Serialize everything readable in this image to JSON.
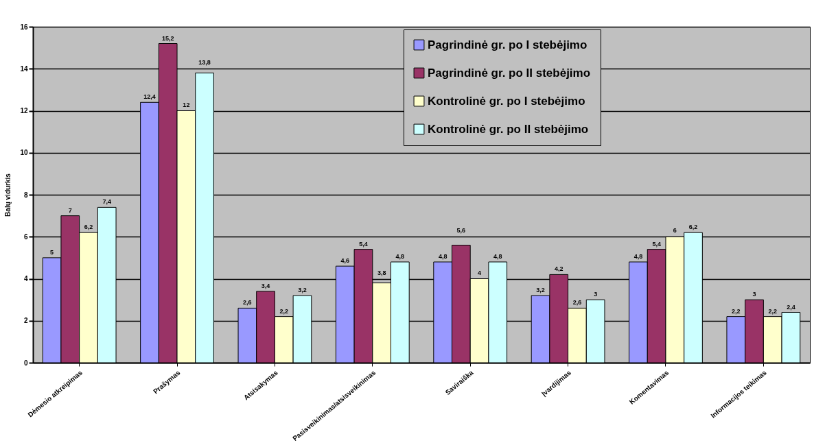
{
  "chart_data": {
    "type": "bar",
    "ylabel": "Balų vidurkis",
    "categories": [
      "Dėmesio atkreipimas",
      "Prašymas",
      "Atsisakymas",
      "Pasisveikinimas/atsisveikinimas",
      "Saviraiška",
      "Įvardijimas",
      "Komentavimas",
      "Informacijos teikimas"
    ],
    "series": [
      {
        "name": "Pagrindinė gr. po I stebėjimo",
        "color": "#9999ff",
        "values": [
          5,
          12.4,
          2.6,
          4.6,
          4.8,
          3.2,
          4.8,
          2.2
        ],
        "value_labels": [
          "5",
          "12,4",
          "2,6",
          "4,6",
          "4,8",
          "3,2",
          "4,8",
          "2,2"
        ]
      },
      {
        "name": "Pagrindinė gr. po II stebėjimo",
        "color": "#993366",
        "values": [
          7,
          15.2,
          3.4,
          5.4,
          5.6,
          4.2,
          5.4,
          3
        ],
        "value_labels": [
          "7",
          "15,2",
          "3,4",
          "5,4",
          "5,6",
          "4,2",
          "5,4",
          "3"
        ]
      },
      {
        "name": "Kontrolinė gr. po I stebėjimo",
        "color": "#ffffcc",
        "values": [
          6.2,
          12,
          2.2,
          3.8,
          4,
          2.6,
          6,
          2.2
        ],
        "value_labels": [
          "6,2",
          "12",
          "2,2",
          "3,8",
          "4",
          "2,6",
          "6",
          "2,2"
        ]
      },
      {
        "name": "Kontrolinė gr. po II stebėjimo",
        "color": "#ccffff",
        "values": [
          7.4,
          13.8,
          3.2,
          4.8,
          4.8,
          3,
          6.2,
          2.4
        ],
        "value_labels": [
          "7,4",
          "13,8",
          "3,2",
          "4,8",
          "4,8",
          "3",
          "6,2",
          "2,4"
        ]
      }
    ],
    "ylim": [
      0,
      16
    ],
    "yticks": [
      0,
      2,
      4,
      6,
      8,
      10,
      12,
      14,
      16
    ],
    "grid": "y",
    "legend": "top"
  }
}
